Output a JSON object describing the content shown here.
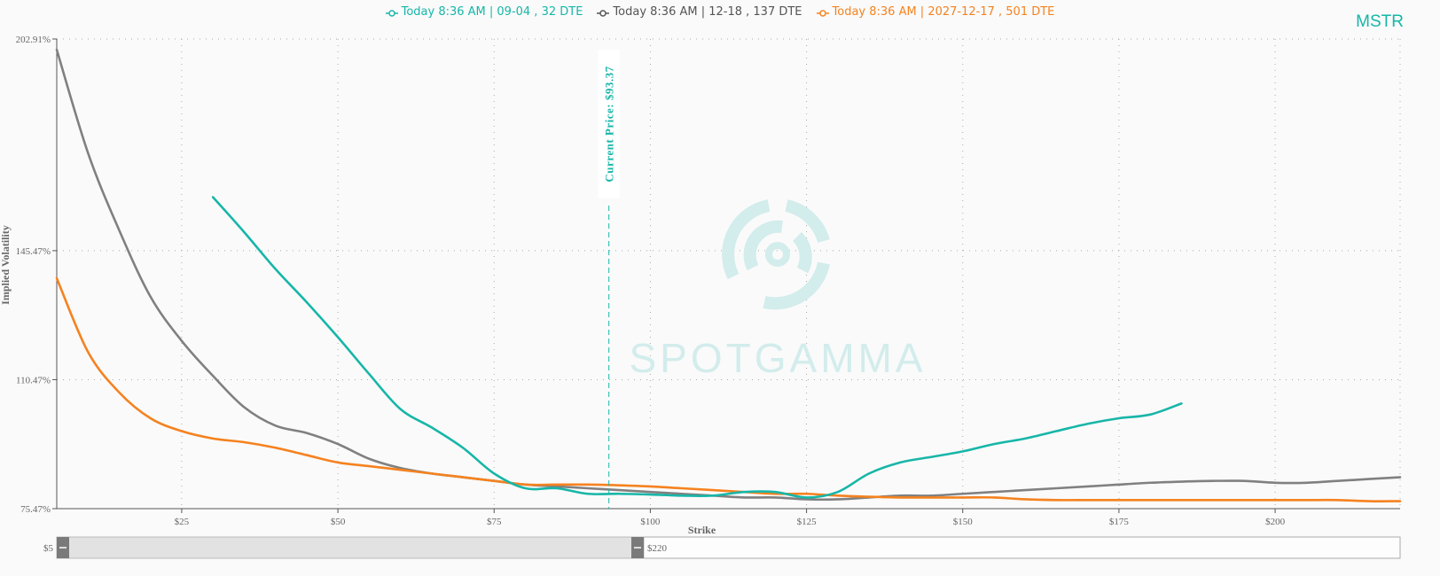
{
  "ticker": "MSTR",
  "watermark": "SPOTGAMMA",
  "colors": {
    "teal": "#17b6a8",
    "gray": "#808080",
    "orange": "#f5821f"
  },
  "legend": [
    {
      "label": "Today 8:36 AM | 09-04 , 32 DTE",
      "color": "#17b6a8"
    },
    {
      "label": "Today 8:36 AM | 12-18 , 137 DTE",
      "color": "#555555"
    },
    {
      "label": "Today 8:36 AM | 2027-12-17 , 501 DTE",
      "color": "#f5821f"
    }
  ],
  "current_price_label": "Current Price: $93.37",
  "slider": {
    "min_label": "$5",
    "max_label": "$220"
  },
  "chart_data": {
    "type": "line",
    "xlabel": "Strike",
    "ylabel": "Implied Volatility",
    "xlim": [
      5,
      220
    ],
    "ylim": [
      75.47,
      202.91
    ],
    "x_ticks": [
      {
        "value": 25,
        "label": "$25"
      },
      {
        "value": 50,
        "label": "$50"
      },
      {
        "value": 75,
        "label": "$75"
      },
      {
        "value": 100,
        "label": "$100"
      },
      {
        "value": 125,
        "label": "$125"
      },
      {
        "value": 150,
        "label": "$150"
      },
      {
        "value": 175,
        "label": "$175"
      },
      {
        "value": 200,
        "label": "$200"
      }
    ],
    "y_ticks": [
      {
        "value": 75.47,
        "label": "75.47%"
      },
      {
        "value": 110.47,
        "label": "110.47%"
      },
      {
        "value": 145.47,
        "label": "145.47%"
      },
      {
        "value": 202.91,
        "label": "202.91%"
      }
    ],
    "grid": true,
    "current_price": 93.37,
    "series": [
      {
        "name": "Today 8:36 AM | 09-04 , 32 DTE",
        "color": "#17b6a8",
        "points": [
          [
            30,
            160
          ],
          [
            35,
            150.5
          ],
          [
            40,
            140.5
          ],
          [
            45,
            131.5
          ],
          [
            50,
            122
          ],
          [
            55,
            112
          ],
          [
            60,
            102.5
          ],
          [
            65,
            97.5
          ],
          [
            70,
            92
          ],
          [
            75,
            85
          ],
          [
            80,
            81
          ],
          [
            85,
            81
          ],
          [
            90,
            79.5
          ],
          [
            95,
            79.5
          ],
          [
            100,
            79.3
          ],
          [
            105,
            79
          ],
          [
            110,
            79
          ],
          [
            115,
            80
          ],
          [
            120,
            80
          ],
          [
            125,
            78.5
          ],
          [
            130,
            80
          ],
          [
            135,
            85
          ],
          [
            140,
            88
          ],
          [
            145,
            89.5
          ],
          [
            150,
            91
          ],
          [
            155,
            93
          ],
          [
            160,
            94.5
          ],
          [
            165,
            96.5
          ],
          [
            170,
            98.5
          ],
          [
            175,
            100
          ],
          [
            180,
            101
          ],
          [
            185,
            104
          ]
        ]
      },
      {
        "name": "Today 8:36 AM | 12-18 , 137 DTE",
        "color": "#808080",
        "points": [
          [
            5,
            200
          ],
          [
            10,
            172
          ],
          [
            15,
            151
          ],
          [
            20,
            133
          ],
          [
            25,
            121
          ],
          [
            30,
            111.5
          ],
          [
            35,
            103
          ],
          [
            40,
            98
          ],
          [
            45,
            96
          ],
          [
            50,
            93
          ],
          [
            55,
            89
          ],
          [
            60,
            86.5
          ],
          [
            65,
            85
          ],
          [
            70,
            84
          ],
          [
            75,
            83
          ],
          [
            80,
            82
          ],
          [
            85,
            81.5
          ],
          [
            90,
            81
          ],
          [
            95,
            80.5
          ],
          [
            100,
            80
          ],
          [
            105,
            79.5
          ],
          [
            110,
            79
          ],
          [
            115,
            78.5
          ],
          [
            120,
            78.5
          ],
          [
            125,
            78
          ],
          [
            130,
            78
          ],
          [
            135,
            78.5
          ],
          [
            140,
            79
          ],
          [
            145,
            79
          ],
          [
            150,
            79.5
          ],
          [
            155,
            80
          ],
          [
            160,
            80.5
          ],
          [
            165,
            81
          ],
          [
            170,
            81.5
          ],
          [
            175,
            82
          ],
          [
            180,
            82.5
          ],
          [
            185,
            82.8
          ],
          [
            190,
            83
          ],
          [
            195,
            83
          ],
          [
            200,
            82.5
          ],
          [
            205,
            82.5
          ],
          [
            210,
            83
          ],
          [
            215,
            83.5
          ],
          [
            220,
            84
          ]
        ]
      },
      {
        "name": "Today 8:36 AM | 2027-12-17 , 501 DTE",
        "color": "#f5821f",
        "points": [
          [
            5,
            138
          ],
          [
            10,
            118
          ],
          [
            15,
            107
          ],
          [
            20,
            100
          ],
          [
            25,
            96.5
          ],
          [
            30,
            94.5
          ],
          [
            35,
            93.5
          ],
          [
            40,
            92
          ],
          [
            45,
            90
          ],
          [
            50,
            88
          ],
          [
            55,
            87
          ],
          [
            60,
            86
          ],
          [
            65,
            85
          ],
          [
            70,
            84
          ],
          [
            75,
            83
          ],
          [
            80,
            82
          ],
          [
            85,
            82
          ],
          [
            90,
            82
          ],
          [
            95,
            81.8
          ],
          [
            100,
            81.5
          ],
          [
            105,
            81
          ],
          [
            110,
            80.5
          ],
          [
            115,
            80
          ],
          [
            120,
            79.5
          ],
          [
            125,
            79.5
          ],
          [
            130,
            79
          ],
          [
            135,
            78.7
          ],
          [
            140,
            78.5
          ],
          [
            145,
            78.5
          ],
          [
            150,
            78.5
          ],
          [
            155,
            78.5
          ],
          [
            160,
            78
          ],
          [
            165,
            77.8
          ],
          [
            170,
            77.8
          ],
          [
            175,
            77.8
          ],
          [
            180,
            77.8
          ],
          [
            185,
            77.8
          ],
          [
            190,
            77.8
          ],
          [
            195,
            77.8
          ],
          [
            200,
            77.8
          ],
          [
            205,
            77.8
          ],
          [
            210,
            77.8
          ],
          [
            215,
            77.5
          ],
          [
            220,
            77.5
          ]
        ]
      }
    ]
  }
}
